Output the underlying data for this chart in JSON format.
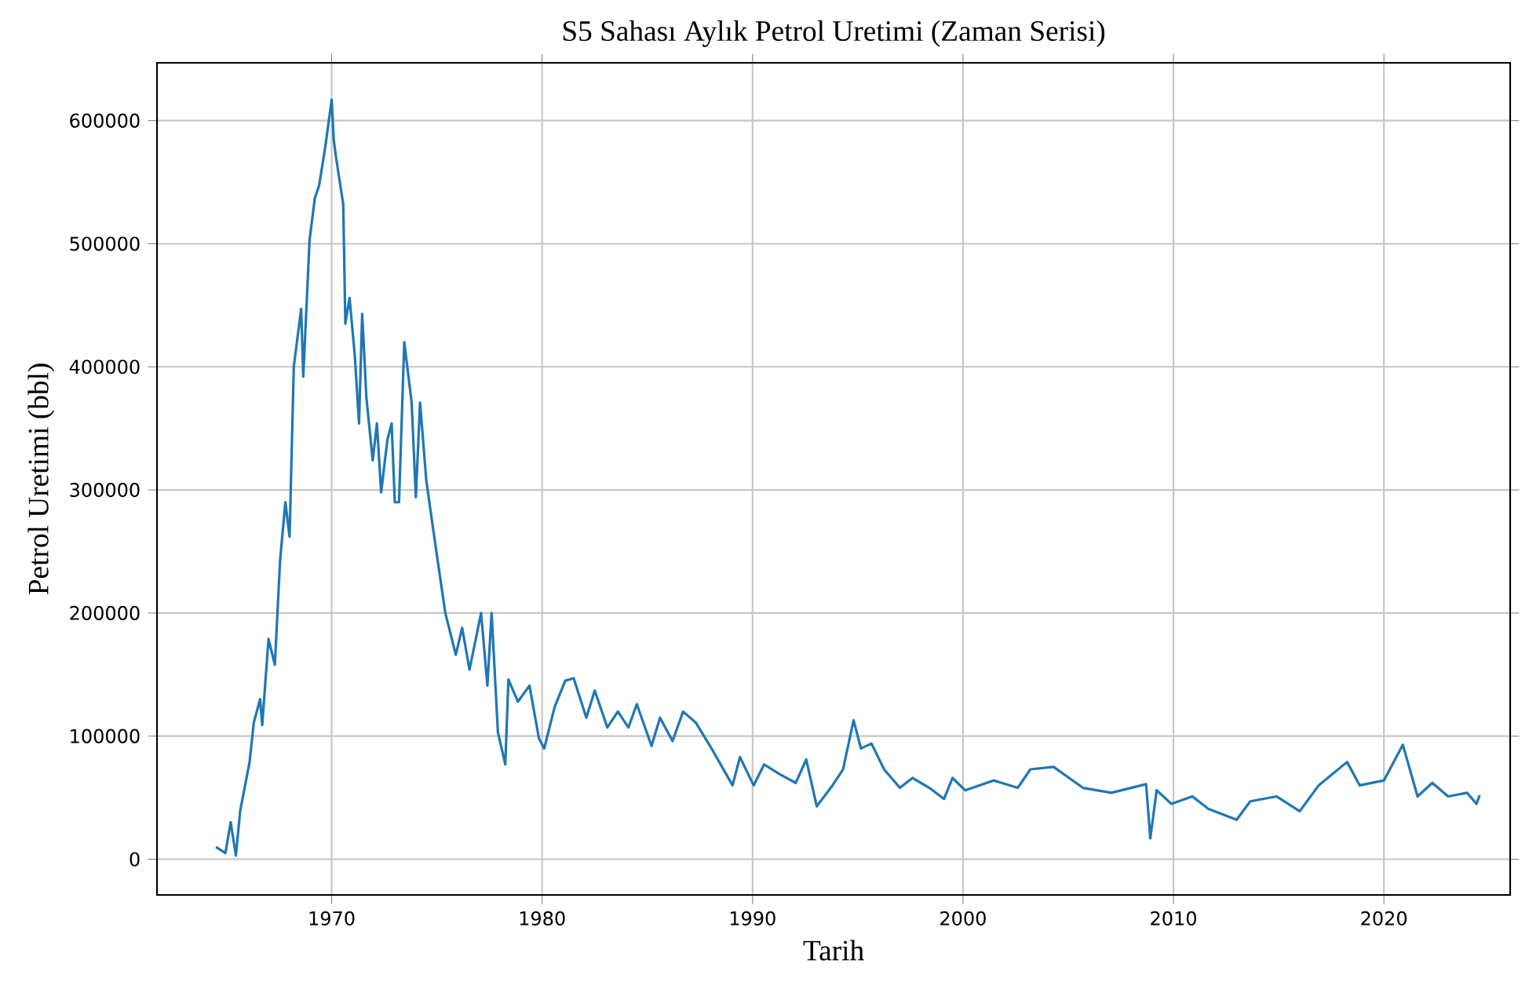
{
  "chart_data": {
    "type": "line",
    "title": "S5 Sahası Aylık Petrol Uretimi (Zaman Serisi)",
    "xlabel": "Tarih",
    "ylabel": "Petrol Uretimi (bbl)",
    "x": [
      1964.5,
      1964.95,
      1965.2,
      1965.45,
      1965.65,
      1966.1,
      1966.3,
      1966.6,
      1966.7,
      1967.0,
      1967.3,
      1967.55,
      1967.8,
      1968.0,
      1968.2,
      1968.55,
      1968.65,
      1968.95,
      1969.2,
      1969.4,
      1969.7,
      1970.0,
      1970.1,
      1970.2,
      1970.55,
      1970.65,
      1970.85,
      1971.1,
      1971.3,
      1971.45,
      1971.65,
      1971.95,
      1972.15,
      1972.35,
      1972.65,
      1972.85,
      1973.0,
      1973.2,
      1973.45,
      1973.8,
      1974.0,
      1974.2,
      1974.5,
      1975.0,
      1975.4,
      1975.9,
      1976.2,
      1976.55,
      1977.1,
      1977.4,
      1977.6,
      1977.9,
      1978.25,
      1978.4,
      1978.85,
      1979.4,
      1979.85,
      1980.1,
      1980.6,
      1981.1,
      1981.5,
      1982.1,
      1982.5,
      1983.1,
      1983.6,
      1984.1,
      1984.5,
      1985.2,
      1985.6,
      1986.2,
      1986.7,
      1987.3,
      1988.05,
      1989.05,
      1989.4,
      1990.05,
      1990.55,
      1991.3,
      1992.05,
      1992.55,
      1993.05,
      1993.8,
      1994.3,
      1994.8,
      1995.15,
      1995.65,
      1996.25,
      1997.0,
      1997.6,
      1998.4,
      1999.1,
      1999.5,
      2000.1,
      2001.45,
      2002.6,
      2003.2,
      2004.3,
      2005.7,
      2007.05,
      2008.7,
      2008.9,
      2009.2,
      2009.9,
      2010.9,
      2011.65,
      2013.0,
      2013.65,
      2014.9,
      2016.0,
      2016.9,
      2018.25,
      2018.85,
      2020.0,
      2020.9,
      2021.6,
      2022.3,
      2023.05,
      2023.95,
      2024.4,
      2024.55
    ],
    "series": [
      {
        "color": "#1f77b4",
        "values": [
          10000,
          5000,
          30000,
          3000,
          39000,
          79000,
          111000,
          130000,
          109000,
          179000,
          158000,
          243000,
          290000,
          262000,
          400000,
          447000,
          392000,
          503000,
          537000,
          547000,
          579000,
          617000,
          584000,
          571000,
          532000,
          435000,
          456000,
          409000,
          354000,
          443000,
          375000,
          324000,
          354000,
          298000,
          341000,
          354000,
          290000,
          290000,
          420000,
          371000,
          294000,
          371000,
          307000,
          247000,
          200000,
          166000,
          188000,
          154000,
          200000,
          141000,
          200000,
          103000,
          77000,
          146000,
          128000,
          141000,
          98000,
          90000,
          124000,
          145000,
          147000,
          115000,
          137000,
          107000,
          120000,
          107000,
          126000,
          92000,
          115000,
          96000,
          120000,
          111000,
          90000,
          60000,
          83000,
          60000,
          77000,
          69000,
          62000,
          81000,
          43000,
          60000,
          73000,
          113000,
          90000,
          94000,
          73000,
          58000,
          66000,
          58000,
          49000,
          66000,
          56000,
          64000,
          58000,
          73000,
          75000,
          58000,
          54000,
          61000,
          17000,
          56000,
          45000,
          51000,
          41000,
          32000,
          47000,
          51000,
          39000,
          60000,
          79000,
          60000,
          64000,
          93000,
          51000,
          62000,
          51000,
          54000,
          45000,
          52000
        ]
      }
    ],
    "xlim": [
      1961.7,
      2026
    ],
    "ylim": [
      -29000,
      647000
    ],
    "xticks": [
      1970,
      1980,
      1990,
      2000,
      2010,
      2020
    ],
    "yticks": [
      0,
      100000,
      200000,
      300000,
      400000,
      500000,
      600000
    ],
    "grid": true,
    "marker": "none",
    "line_style": "solid"
  }
}
